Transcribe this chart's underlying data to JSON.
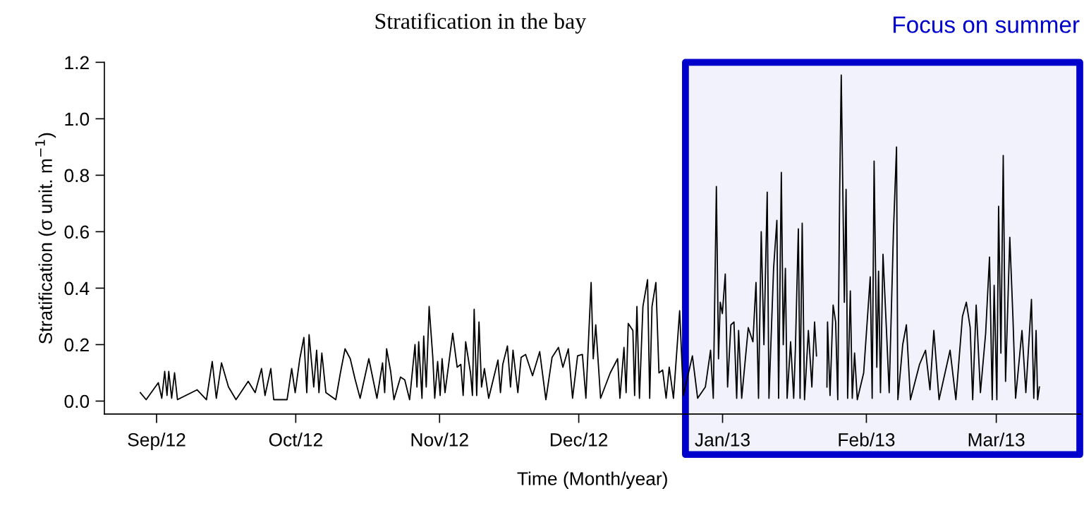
{
  "chart_data": {
    "type": "line",
    "title": "Stratification in the bay",
    "xlabel": "Time (Month/year)",
    "ylabel": "Stratification (σ unit. m$^{−1}$)",
    "xlim": [
      "2012-08-20T18:00",
      "2013-03-19T05:00"
    ],
    "ylim": [
      -0.046,
      1.2
    ],
    "xticks": [
      {
        "value": "2012-09-01",
        "label": "Sep/12"
      },
      {
        "value": "2012-10-01",
        "label": "Oct/12"
      },
      {
        "value": "2012-11-01",
        "label": "Nov/12"
      },
      {
        "value": "2012-12-01",
        "label": "Dec/12"
      },
      {
        "value": "2013-01-01",
        "label": "Jan/13"
      },
      {
        "value": "2013-02-01",
        "label": "Feb/13"
      },
      {
        "value": "2013-03-01",
        "label": "Mar/13"
      }
    ],
    "yticks": [
      {
        "value": 0,
        "label": "0.0"
      },
      {
        "value": 0.2,
        "label": "0.2"
      },
      {
        "value": 0.4,
        "label": "0.4"
      },
      {
        "value": 0.6,
        "label": "0.6"
      },
      {
        "value": 0.8,
        "label": "0.8"
      },
      {
        "value": 1.0,
        "label": "1.0"
      },
      {
        "value": 1.2,
        "label": "1.2"
      }
    ],
    "grid": false,
    "legend": false,
    "bands": [
      {
        "axis": "x",
        "from": "2012-12-24",
        "to": "2013-03-19",
        "label": "Focus on summer",
        "color": "#0000cc"
      }
    ],
    "x": [
      "2012-08-28T12:00",
      "2012-08-29T18:00",
      "2012-09-01T09:00",
      "2012-09-02T03:00",
      "2012-09-02T18:00",
      "2012-09-03T06:00",
      "2012-09-03T15:00",
      "2012-09-04T06:00",
      "2012-09-04T21:00",
      "2012-09-05T12:00",
      "2012-09-09T18:00",
      "2012-09-11T18:00",
      "2012-09-13T00:00",
      "2012-09-13T21:00",
      "2012-09-15T00:00",
      "2012-09-16T12:00",
      "2012-09-18T03:00",
      "2012-09-20T18:00",
      "2012-09-22T06:00",
      "2012-09-23T15:00",
      "2012-09-24T09:00",
      "2012-09-25T15:00",
      "2012-09-26T06:00",
      "2012-09-29T03:00",
      "2012-09-30T03:00",
      "2012-09-30T21:00",
      "2012-10-01T21:00",
      "2012-10-02T18:00",
      "2012-10-03T09:00",
      "2012-10-03T21:00",
      "2012-10-04T21:00",
      "2012-10-05T12:00",
      "2012-10-06T00:00",
      "2012-10-06T15:00",
      "2012-10-07T12:00",
      "2012-10-09T15:00",
      "2012-10-10T15:00",
      "2012-10-11T15:00",
      "2012-10-12T18:00",
      "2012-10-13T18:00",
      "2012-10-14T21:00",
      "2012-10-16T18:00",
      "2012-10-18T12:00",
      "2012-10-19T17:00",
      "2012-10-20T04:00",
      "2012-10-20T14:00",
      "2012-10-21T11:00",
      "2012-10-22T04:00",
      "2012-10-23T14:00",
      "2012-10-24T12:00",
      "2012-10-25T13:00",
      "2012-10-26T17:00",
      "2012-10-27T03:00",
      "2012-10-27T12:00",
      "2012-10-28T05:00",
      "2012-10-28T14:00",
      "2012-10-29T03:00",
      "2012-10-29T18:00",
      "2012-10-30T13:00",
      "2012-10-30T23:00",
      "2012-10-31T14:00",
      "2012-11-01T03:00",
      "2012-11-01T13:00",
      "2012-11-02T04:00",
      "2012-11-03T20:00",
      "2012-11-04T19:00",
      "2012-11-05T14:00",
      "2012-11-06T02:00",
      "2012-11-06T15:00",
      "2012-11-07T16:00",
      "2012-11-08T02:00",
      "2012-11-08T11:00",
      "2012-11-09T00:00",
      "2012-11-09T12:00",
      "2012-11-10T01:00",
      "2012-11-10T16:00",
      "2012-11-11T14:00",
      "2012-11-13T14:00",
      "2012-11-14T03:00",
      "2012-11-14T15:00",
      "2012-11-15T15:00",
      "2012-11-16T07:00",
      "2012-11-16T20:00",
      "2012-11-17T21:00",
      "2012-11-18T14:00",
      "2012-11-19T13:00",
      "2012-11-21T01:00",
      "2012-11-22T14:00",
      "2012-11-23T22:00",
      "2012-11-25T06:00",
      "2012-11-26T15:00",
      "2012-11-27T14:00",
      "2012-11-28T18:00",
      "2012-11-29T16:00",
      "2012-11-30T18:00",
      "2012-12-01T19:00",
      "2012-12-02T13:00",
      "2012-12-03T16:00",
      "2012-12-04T03:00",
      "2012-12-04T16:00",
      "2012-12-05T17:00",
      "2012-12-07T19:00",
      "2012-12-09T09:00",
      "2012-12-09T21:00",
      "2012-12-10T18:00",
      "2012-12-11T05:00",
      "2012-12-11T16:00",
      "2012-12-12T16:00",
      "2012-12-13T01:00",
      "2012-12-13T13:00",
      "2012-12-14T02:00",
      "2012-12-14T20:00",
      "2012-12-15T20:00",
      "2012-12-16T07:00",
      "2012-12-16T19:00",
      "2012-12-17T15:00",
      "2012-12-18T07:00",
      "2012-12-19T02:00",
      "2012-12-19T20:00",
      "2012-12-20T12:00",
      "2012-12-21T10:00",
      "2012-12-22T18:00",
      "2012-12-23T13:00",
      "2012-12-25T12:00",
      "2012-12-26T15:00",
      "2012-12-28T07:00",
      "2012-12-29T10:00",
      "2012-12-30T00:00",
      "2012-12-30T16:00",
      "2012-12-31T03:00",
      "2012-12-31T12:00",
      "2012-12-31T23:00",
      "2013-01-01T14:00",
      "2013-01-02T02:00",
      "2013-01-02T19:00",
      "2013-01-03T11:00",
      "2013-01-04T01:00",
      "2013-01-04T11:00",
      "2013-01-05T03:00",
      "2013-01-06T13:00",
      "2013-01-07T13:00",
      "2013-01-08T05:00",
      "2013-01-08T18:00",
      "2013-01-09T08:00",
      "2013-01-09T22:00",
      "2013-01-10T15:00",
      "2013-01-11T00:00",
      "2013-01-12T00:00",
      "2013-01-12T17:00",
      "2013-01-13T02:00",
      "2013-01-13T16:00",
      "2013-01-14T02:00",
      "2013-01-14T13:00",
      "2013-01-14T22:00",
      "2013-01-15T16:00",
      "2013-01-16T08:00",
      "2013-01-16T17:00",
      "2013-01-17T08:00",
      "2013-01-17T17:00",
      "2013-01-18T04:00",
      "2013-01-18T16:00",
      "2013-01-19T12:00",
      "2013-01-20T06:00",
      "2013-01-20T20:00",
      "2013-01-21T06:00",
      "2013-01-22T12:00",
      "2013-01-23T12:00",
      "2013-01-23T15:00",
      "2013-01-24T04:00",
      "2013-01-24T20:00",
      "2013-01-25T09:00",
      "2013-01-25T20:00",
      "2013-01-26T06:00",
      "2013-01-26T14:00",
      "2013-01-27T06:00",
      "2013-01-27T15:00",
      "2013-01-27T23:00",
      "2013-01-28T13:00",
      "2013-01-28T23:00",
      "2013-01-29T11:00",
      "2013-01-30T01:00",
      "2013-01-31T10:00",
      "2013-02-01T08:00",
      "2013-02-01T20:00",
      "2013-02-02T06:00",
      "2013-02-02T16:00",
      "2013-02-03T06:00",
      "2013-02-03T15:00",
      "2013-02-04T01:00",
      "2013-02-04T14:00",
      "2013-02-05T08:00",
      "2013-02-05T22:00",
      "2013-02-06T20:00",
      "2013-02-07T12:00",
      "2013-02-07T19:00",
      "2013-02-08T20:00",
      "2013-02-09T15:00",
      "2013-02-10T12:00",
      "2013-02-12T11:00",
      "2013-02-13T18:00",
      "2013-02-14T17:00",
      "2013-02-15T13:00",
      "2013-02-16T16:00",
      "2013-02-19T01:00",
      "2013-02-20T07:00",
      "2013-02-21T17:00",
      "2013-02-22T13:00",
      "2013-02-23T09:00",
      "2013-02-23T22:00",
      "2013-02-24T16:00",
      "2013-02-25T14:00",
      "2013-02-26T17:00",
      "2013-02-27T13:00",
      "2013-02-28T03:00",
      "2013-02-28T13:00",
      "2013-03-01T03:00",
      "2013-03-01T12:00",
      "2013-03-02T00:00",
      "2013-03-02T12:00",
      "2013-03-03T00:00",
      "2013-03-03T22:00",
      "2013-03-04T14:00",
      "2013-03-05T04:00",
      "2013-03-06T13:00",
      "2013-03-07T09:00",
      "2013-03-08T14:00",
      "2013-03-09T02:00",
      "2013-03-09T14:00",
      "2013-03-09T22:00",
      "2013-03-10T07:00"
    ],
    "series": [
      {
        "color": "#000000",
        "values": [
          0.03,
          0.005,
          0.065,
          0.01,
          0.105,
          0.02,
          0.105,
          0.01,
          0.1,
          0.005,
          0.04,
          0.005,
          0.14,
          0.01,
          0.135,
          0.05,
          0.005,
          0.07,
          0.03,
          0.115,
          0.02,
          0.115,
          0.005,
          0.005,
          0.115,
          0.03,
          0.15,
          0.225,
          0.03,
          0.235,
          0.05,
          0.18,
          0.03,
          0.17,
          0.03,
          0.005,
          0.1,
          0.185,
          0.15,
          0.08,
          0.01,
          0.15,
          0.01,
          0.135,
          0.03,
          0.185,
          0.105,
          0.005,
          0.085,
          0.075,
          0.005,
          0.2,
          0.05,
          0.21,
          0.01,
          0.23,
          0.05,
          0.335,
          0.155,
          0.01,
          0.14,
          0.02,
          0.15,
          0.03,
          0.24,
          0.12,
          0.13,
          0.02,
          0.21,
          0.1,
          0.02,
          0.325,
          0.02,
          0.28,
          0.05,
          0.115,
          0.01,
          0.145,
          0.03,
          0.13,
          0.195,
          0.05,
          0.18,
          0.03,
          0.155,
          0.165,
          0.09,
          0.175,
          0.005,
          0.155,
          0.19,
          0.12,
          0.185,
          0.01,
          0.16,
          0.165,
          0.01,
          0.42,
          0.15,
          0.27,
          0.01,
          0.1,
          0.15,
          0.01,
          0.19,
          0.03,
          0.275,
          0.25,
          0.02,
          0.335,
          0.01,
          0.335,
          0.43,
          0.01,
          0.335,
          0.42,
          0.1,
          0.11,
          0.01,
          0.12,
          0.01,
          0.32,
          0.02,
          0.16,
          0.01,
          0.05,
          0.18,
          0.01,
          0.76,
          0.15,
          0.35,
          0.31,
          0.45,
          0.05,
          0.27,
          0.28,
          0.01,
          0.25,
          0.01,
          0.26,
          0.21,
          0.42,
          0.01,
          0.6,
          0.2,
          0.74,
          0.01,
          0.47,
          0.64,
          0.01,
          0.81,
          0.2,
          0.47,
          0.01,
          0.21,
          0.01,
          0.19,
          0.61,
          0.01,
          0.63,
          0.005,
          0.25,
          0.05,
          0.28,
          0.16,
          null,
          0.05,
          0.28,
          0.02,
          0.34,
          0.28,
          0.005,
          0.75,
          1.155,
          0.35,
          0.75,
          0.01,
          0.39,
          0.01,
          0.17,
          0.005,
          0.1,
          0.32,
          0.44,
          0.01,
          0.85,
          0.12,
          0.46,
          0.03,
          0.52,
          0.25,
          0.03,
          0.6,
          0.9,
          0.005,
          0.2,
          0.27,
          0.005,
          0.13,
          0.18,
          0.04,
          0.25,
          0.005,
          0.18,
          0.005,
          0.3,
          0.35,
          0.26,
          0.005,
          0.34,
          0.03,
          0.24,
          0.51,
          0.005,
          0.41,
          0.005,
          0.69,
          0.17,
          0.87,
          0.07,
          0.58,
          0.3,
          0.01,
          0.25,
          0.03,
          0.36,
          0.01,
          0.25,
          0.005,
          0.05
        ]
      }
    ]
  }
}
